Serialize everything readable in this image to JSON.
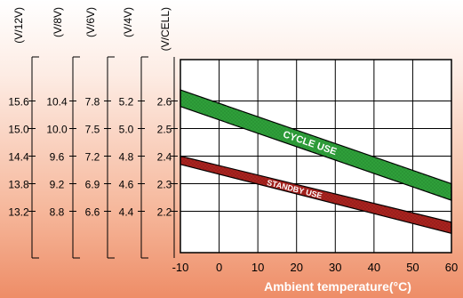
{
  "chart_data": {
    "type": "line",
    "xlabel": "Ambient temperature(°C)",
    "x_ticks": [
      "-10",
      "0",
      "10",
      "20",
      "30",
      "40",
      "50",
      "60"
    ],
    "xlim": [
      -10,
      60
    ],
    "ylim_v_per_cell": [
      2.05,
      2.75
    ],
    "grid": true,
    "y_axes": [
      {
        "unit": "(V/12V)",
        "ticks": [
          "15.6",
          "15.0",
          "14.4",
          "13.8",
          "13.2"
        ]
      },
      {
        "unit": "(V/8V)",
        "ticks": [
          "10.4",
          "10.0",
          "9.6",
          "9.2",
          "8.8"
        ]
      },
      {
        "unit": "(V/6V)",
        "ticks": [
          "7.8",
          "7.5",
          "7.2",
          "6.9",
          "6.6"
        ]
      },
      {
        "unit": "(V/4V)",
        "ticks": [
          "5.2",
          "5.0",
          "4.8",
          "4.6",
          "4.4"
        ]
      },
      {
        "unit": "(V/CELL)",
        "ticks": [
          "2.6",
          "2.5",
          "2.4",
          "2.3",
          "2.2"
        ]
      }
    ],
    "y_tick_values_v_per_cell": [
      2.6,
      2.5,
      2.4,
      2.3,
      2.2
    ],
    "series": [
      {
        "name": "CYCLE USE",
        "color": "#2f9f3a",
        "x": [
          -10,
          60
        ],
        "upper": [
          2.64,
          2.3
        ],
        "lower": [
          2.58,
          2.24
        ]
      },
      {
        "name": "STANDBY USE",
        "color": "#a8231f",
        "x": [
          -10,
          60
        ],
        "upper": [
          2.4,
          2.16
        ],
        "lower": [
          2.37,
          2.12
        ]
      }
    ]
  }
}
